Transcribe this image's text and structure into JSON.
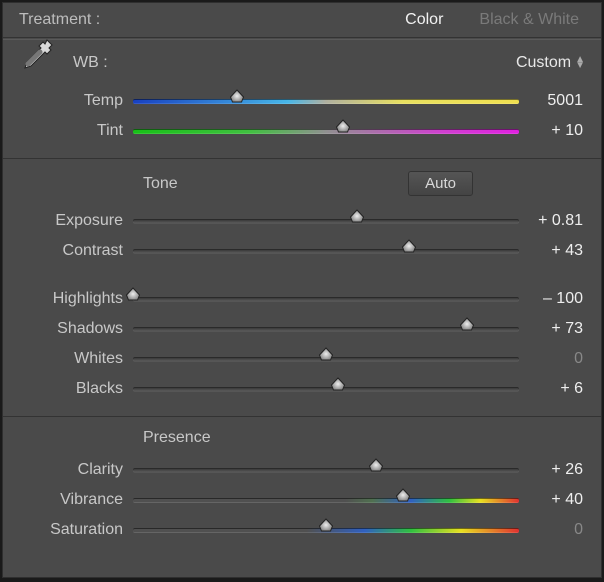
{
  "treatment": {
    "label": "Treatment :",
    "tabs": {
      "color": "Color",
      "bw": "Black & White"
    },
    "active": "color"
  },
  "wb": {
    "label": "WB :",
    "value": "Custom",
    "temp_label": "Temp",
    "temp_value": "5001",
    "temp_pos": 0.27,
    "tint_label": "Tint",
    "tint_value": "+ 10",
    "tint_pos": 0.545
  },
  "tone": {
    "title": "Tone",
    "auto_label": "Auto",
    "exposure_label": "Exposure",
    "exposure_value": "+ 0.81",
    "exposure_pos": 0.58,
    "contrast_label": "Contrast",
    "contrast_value": "+ 43",
    "contrast_pos": 0.715,
    "highlights_label": "Highlights",
    "highlights_value": "– 100",
    "highlights_pos": 0.0,
    "shadows_label": "Shadows",
    "shadows_value": "+ 73",
    "shadows_pos": 0.865,
    "whites_label": "Whites",
    "whites_value": "0",
    "whites_pos": 0.5,
    "whites_zero": true,
    "blacks_label": "Blacks",
    "blacks_value": "+ 6",
    "blacks_pos": 0.53
  },
  "presence": {
    "title": "Presence",
    "clarity_label": "Clarity",
    "clarity_value": "+ 26",
    "clarity_pos": 0.63,
    "vibrance_label": "Vibrance",
    "vibrance_value": "+ 40",
    "vibrance_pos": 0.7,
    "saturation_label": "Saturation",
    "saturation_value": "0",
    "saturation_pos": 0.5,
    "saturation_zero": true
  },
  "colors": {
    "panel_bg": "#4a4a4a",
    "text": "#c8c8c8",
    "text_bright": "#eeeeee",
    "text_dim": "#7a7a7a",
    "divider": "#333333"
  }
}
